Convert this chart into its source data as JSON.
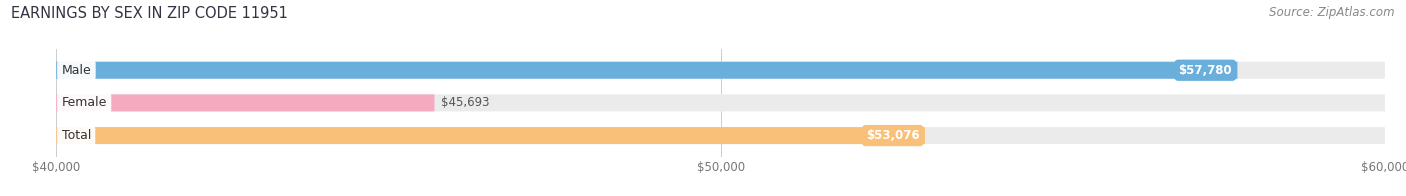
{
  "title": "EARNINGS BY SEX IN ZIP CODE 11951",
  "source": "Source: ZipAtlas.com",
  "categories": [
    "Male",
    "Female",
    "Total"
  ],
  "values": [
    57780,
    45693,
    53076
  ],
  "bar_colors": [
    "#6aaedc",
    "#f5aac0",
    "#f9c07a"
  ],
  "value_labels": [
    "$57,780",
    "$45,693",
    "$53,076"
  ],
  "label_inside": [
    true,
    false,
    true
  ],
  "xlim": [
    40000,
    60000
  ],
  "xticks": [
    40000,
    50000,
    60000
  ],
  "xtick_labels": [
    "$40,000",
    "$50,000",
    "$60,000"
  ],
  "bar_height": 0.52,
  "title_fontsize": 10.5,
  "source_fontsize": 8.5,
  "tick_fontsize": 8.5,
  "label_fontsize": 8.5,
  "category_fontsize": 9,
  "background_color": "#ffffff",
  "bar_bg_color": "#ebebeb",
  "title_color": "#333344",
  "grid_color": "#cccccc"
}
